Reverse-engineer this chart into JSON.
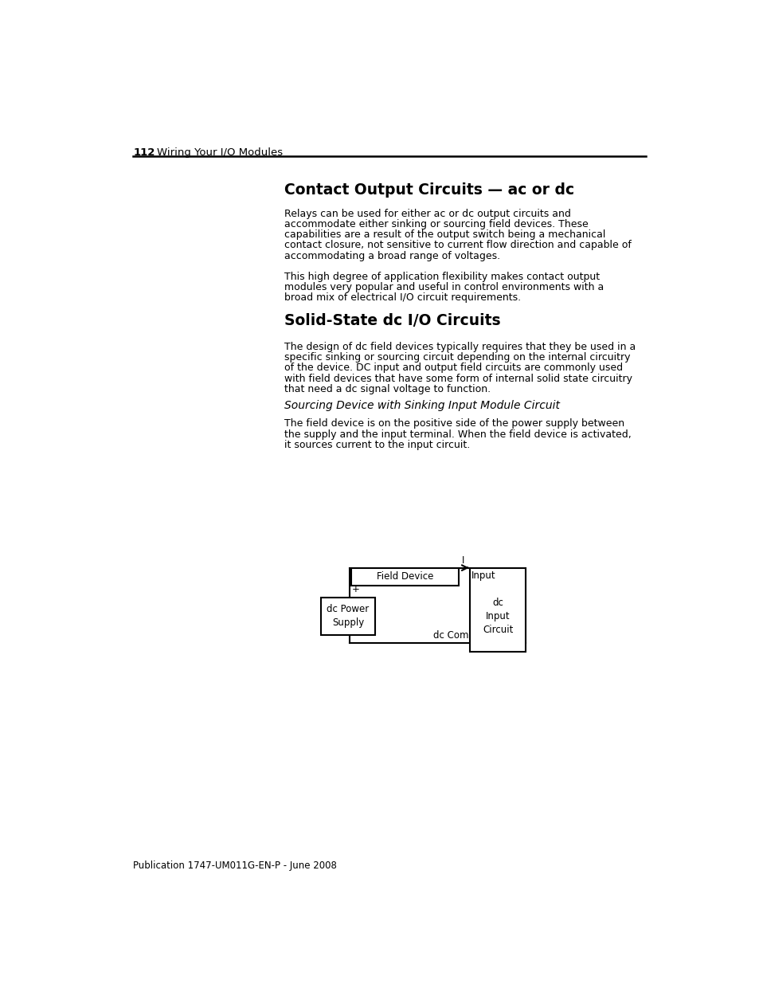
{
  "page_number": "112",
  "page_header": "Wiring Your I/O Modules",
  "footer": "Publication 1747-UM011G-EN-P - June 2008",
  "section1_title": "Contact Output Circuits — ac or dc",
  "section1_body1": "Relays can be used for either ac or dc output circuits and\naccommodate either sinking or sourcing field devices. These\ncapabilities are a result of the output switch being a mechanical\ncontact closure, not sensitive to current flow direction and capable of\naccommodating a broad range of voltages.",
  "section1_body2": "This high degree of application flexibility makes contact output\nmodules very popular and useful in control environments with a\nbroad mix of electrical I/O circuit requirements.",
  "section2_title": "Solid-State dc I/O Circuits",
  "section2_body": "The design of dc field devices typically requires that they be used in a\nspecific sinking or sourcing circuit depending on the internal circuitry\nof the device. DC input and output field circuits are commonly used\nwith field devices that have some form of internal solid state circuitry\nthat need a dc signal voltage to function.",
  "subsection_title": "Sourcing Device with Sinking Input Module Circuit",
  "subsection_body": "The field device is on the positive side of the power supply between\nthe supply and the input terminal. When the field device is activated,\nit sources current to the input circuit.",
  "diagram": {
    "field_device_label": "Field Device",
    "input_label": "Input",
    "current_label": "I",
    "plus_label": "+",
    "minus_label": "–",
    "dc_power_label": "dc Power\nSupply",
    "dc_com_label": "dc Com",
    "dc_input_circuit_label": "dc\nInput\nCircuit"
  },
  "bg_color": "#ffffff",
  "text_color": "#000000"
}
